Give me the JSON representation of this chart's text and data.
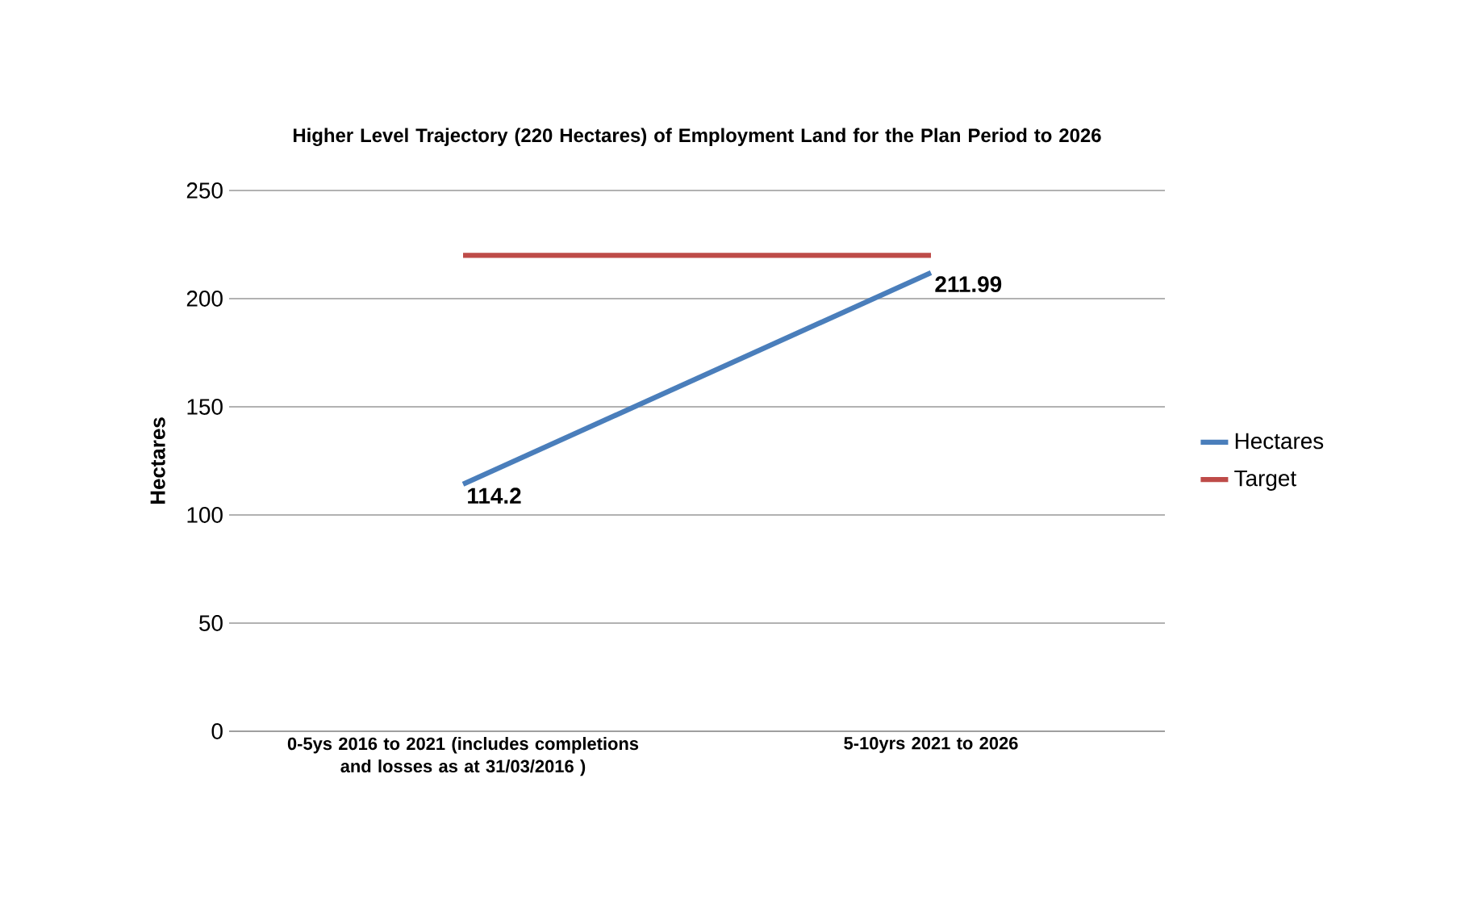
{
  "chart_data": {
    "type": "line",
    "title": "Higher Level Trajectory (220 Hectares) of Employment Land for the Plan Period to 2026",
    "ylabel": "Hectares",
    "categories": [
      "0-5ys 2016 to 2021 (includes completions and losses as at 31/03/2016 )",
      "5-10yrs 2021 to 2026"
    ],
    "series": [
      {
        "name": "Hectares",
        "color": "#4a7ebb",
        "values": [
          114.2,
          211.99
        ],
        "value_labels": [
          "114.2",
          "211.99"
        ]
      },
      {
        "name": "Target",
        "color": "#be4b48",
        "values": [
          220,
          220
        ]
      }
    ],
    "ylim": [
      0,
      250
    ],
    "yticks": [
      0,
      50,
      100,
      150,
      200,
      250
    ],
    "grid": "y",
    "legend": "right",
    "marker": "none"
  }
}
